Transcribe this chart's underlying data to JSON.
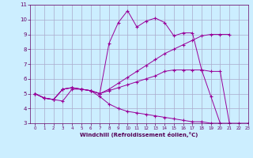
{
  "background_color": "#cceeff",
  "grid_color": "#aaaacc",
  "line_color": "#990099",
  "xlabel": "Windchill (Refroidissement éolien,°C)",
  "xlim": [
    -0.5,
    23
  ],
  "ylim": [
    3,
    11
  ],
  "xticks": [
    0,
    1,
    2,
    3,
    4,
    5,
    6,
    7,
    8,
    9,
    10,
    11,
    12,
    13,
    14,
    15,
    16,
    17,
    18,
    19,
    20,
    21,
    22,
    23
  ],
  "yticks": [
    3,
    4,
    5,
    6,
    7,
    8,
    9,
    10,
    11
  ],
  "lines": [
    {
      "x": [
        0,
        1,
        2,
        3,
        4,
        5,
        6,
        7,
        8,
        9,
        10,
        11,
        12,
        13,
        14,
        15,
        16,
        17,
        18,
        19,
        20,
        21,
        22,
        23
      ],
      "y": [
        5.0,
        4.7,
        4.6,
        4.5,
        5.3,
        5.3,
        5.2,
        4.8,
        4.3,
        4.0,
        3.8,
        3.7,
        3.6,
        3.5,
        3.4,
        3.3,
        3.2,
        3.1,
        3.1,
        3.0,
        3.0,
        3.0,
        3.0,
        3.0
      ]
    },
    {
      "x": [
        0,
        1,
        2,
        3,
        4,
        5,
        6,
        7,
        8,
        9,
        10,
        11,
        12,
        13,
        14,
        15,
        16,
        17,
        18,
        19,
        20,
        21,
        22,
        23
      ],
      "y": [
        5.0,
        4.7,
        4.6,
        5.3,
        5.4,
        5.3,
        5.2,
        5.0,
        8.4,
        9.8,
        10.6,
        9.5,
        9.9,
        10.1,
        9.8,
        8.9,
        9.1,
        9.1,
        6.6,
        4.8,
        3.0,
        null,
        null,
        null
      ]
    },
    {
      "x": [
        0,
        1,
        2,
        3,
        4,
        5,
        6,
        7,
        8,
        9,
        10,
        11,
        12,
        13,
        14,
        15,
        16,
        17,
        18,
        19,
        20,
        21,
        22,
        23
      ],
      "y": [
        5.0,
        4.7,
        4.6,
        5.3,
        5.4,
        5.3,
        5.2,
        5.0,
        5.2,
        5.4,
        5.6,
        5.8,
        6.0,
        6.2,
        6.5,
        6.6,
        6.6,
        6.6,
        6.6,
        6.5,
        6.5,
        3.0,
        null,
        null
      ]
    },
    {
      "x": [
        0,
        1,
        2,
        3,
        4,
        5,
        6,
        7,
        8,
        9,
        10,
        11,
        12,
        13,
        14,
        15,
        16,
        17,
        18,
        19,
        20,
        21,
        22,
        23
      ],
      "y": [
        5.0,
        4.7,
        4.6,
        5.3,
        5.4,
        5.3,
        5.2,
        5.0,
        5.3,
        5.7,
        6.1,
        6.5,
        6.9,
        7.3,
        7.7,
        8.0,
        8.3,
        8.6,
        8.9,
        9.0,
        9.0,
        9.0,
        null,
        null
      ]
    }
  ]
}
